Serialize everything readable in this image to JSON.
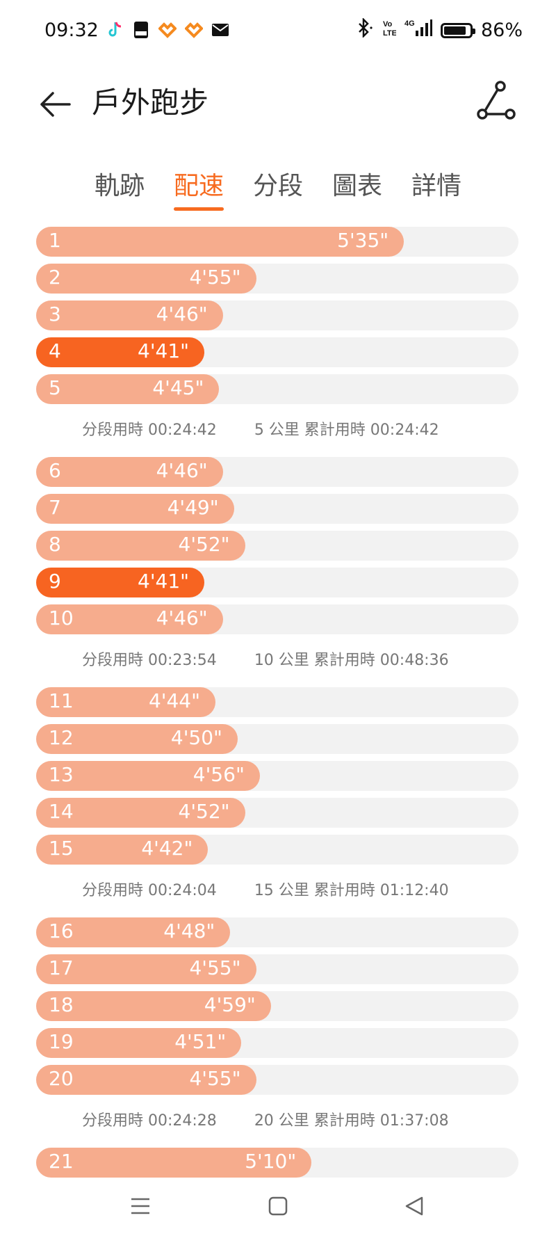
{
  "status": {
    "time": "09:32",
    "battery": "86%",
    "battery_fraction": 0.86,
    "notification_icons": [
      "tiktok-icon",
      "pdf-icon",
      "heart-app-icon",
      "heart-app-icon",
      "mail-icon"
    ],
    "system_icons": [
      "bluetooth-icon",
      "volte-icon",
      "signal-4g-icon",
      "battery-icon"
    ]
  },
  "appbar": {
    "title": "戶外跑步"
  },
  "tabs": [
    {
      "label": "軌跡",
      "active": false
    },
    {
      "label": "配速",
      "active": true
    },
    {
      "label": "分段",
      "active": false
    },
    {
      "label": "圖表",
      "active": false
    },
    {
      "label": "詳情",
      "active": false
    }
  ],
  "colors": {
    "accent": "#f76b20",
    "bar": "#f6ac8d",
    "best_bar": "#f76421",
    "track": "#f2f2f2"
  },
  "groups": [
    {
      "rows": [
        {
          "km": "1",
          "pace": "5'35\"",
          "pace_seconds": 335
        },
        {
          "km": "2",
          "pace": "4'55\"",
          "pace_seconds": 295
        },
        {
          "km": "3",
          "pace": "4'46\"",
          "pace_seconds": 286
        },
        {
          "km": "4",
          "pace": "4'41\"",
          "pace_seconds": 281,
          "best": true
        },
        {
          "km": "5",
          "pace": "4'45\"",
          "pace_seconds": 285
        }
      ],
      "split": "分段用時 00:24:42",
      "cumulative": "5 公里 累計用時 00:24:42"
    },
    {
      "rows": [
        {
          "km": "6",
          "pace": "4'46\"",
          "pace_seconds": 286
        },
        {
          "km": "7",
          "pace": "4'49\"",
          "pace_seconds": 289
        },
        {
          "km": "8",
          "pace": "4'52\"",
          "pace_seconds": 292
        },
        {
          "km": "9",
          "pace": "4'41\"",
          "pace_seconds": 281,
          "best": true
        },
        {
          "km": "10",
          "pace": "4'46\"",
          "pace_seconds": 286
        }
      ],
      "split": "分段用時 00:23:54",
      "cumulative": "10 公里 累計用時 00:48:36"
    },
    {
      "rows": [
        {
          "km": "11",
          "pace": "4'44\"",
          "pace_seconds": 284
        },
        {
          "km": "12",
          "pace": "4'50\"",
          "pace_seconds": 290
        },
        {
          "km": "13",
          "pace": "4'56\"",
          "pace_seconds": 296
        },
        {
          "km": "14",
          "pace": "4'52\"",
          "pace_seconds": 292
        },
        {
          "km": "15",
          "pace": "4'42\"",
          "pace_seconds": 282
        }
      ],
      "split": "分段用時 00:24:04",
      "cumulative": "15 公里 累計用時 01:12:40"
    },
    {
      "rows": [
        {
          "km": "16",
          "pace": "4'48\"",
          "pace_seconds": 288
        },
        {
          "km": "17",
          "pace": "4'55\"",
          "pace_seconds": 295
        },
        {
          "km": "18",
          "pace": "4'59\"",
          "pace_seconds": 299
        },
        {
          "km": "19",
          "pace": "4'51\"",
          "pace_seconds": 291
        },
        {
          "km": "20",
          "pace": "4'55\"",
          "pace_seconds": 295
        }
      ],
      "split": "分段用時 00:24:28",
      "cumulative": "20 公里 累計用時 01:37:08"
    },
    {
      "rows": [
        {
          "km": "21",
          "pace": "5'10\"",
          "pace_seconds": 310
        }
      ]
    }
  ],
  "navbar": {
    "buttons": [
      "menu-icon",
      "home-icon",
      "back-triangle-icon"
    ]
  }
}
